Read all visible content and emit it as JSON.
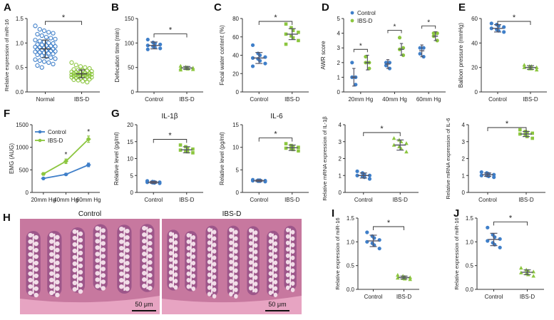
{
  "colors": {
    "control": "#3f7fc9",
    "ibsd": "#8cc63f",
    "axis": "#333333",
    "histo_bg": "#c7789f",
    "histo_cell": "#f2dde8",
    "histo_dark": "#7a3a78",
    "histo_muscle": "#e7a4c2"
  },
  "histology": {
    "panel_label": "H",
    "left_title": "Control",
    "right_title": "IBS-D",
    "scale_label": "50 μm"
  },
  "chart_data": [
    {
      "id": "A",
      "panel_label": "A",
      "type": "scatter",
      "categories": [
        "Normal",
        "IBS-D"
      ],
      "ylabel": "Relative expression of miR-16",
      "ylim": [
        0,
        1.5
      ],
      "yticks": [
        0,
        0.5,
        1.0,
        1.5
      ],
      "significance": "*",
      "markers": [
        "circle-open",
        "circle-open"
      ],
      "series": [
        {
          "name": "Normal",
          "mean": 0.88,
          "sd": 0.18,
          "values": [
            1.35,
            1.28,
            1.25,
            1.22,
            1.2,
            1.18,
            1.15,
            1.12,
            1.1,
            1.08,
            1.06,
            1.04,
            1.02,
            1.0,
            0.99,
            0.97,
            0.96,
            0.95,
            0.94,
            0.93,
            0.92,
            0.91,
            0.9,
            0.89,
            0.88,
            0.87,
            0.86,
            0.85,
            0.84,
            0.83,
            0.82,
            0.81,
            0.8,
            0.79,
            0.78,
            0.76,
            0.74,
            0.72,
            0.7,
            0.68,
            0.66,
            0.64,
            0.62,
            0.6,
            0.57,
            0.54,
            0.5
          ]
        },
        {
          "name": "IBS-D",
          "mean": 0.37,
          "sd": 0.08,
          "values": [
            0.6,
            0.55,
            0.52,
            0.5,
            0.48,
            0.46,
            0.45,
            0.44,
            0.43,
            0.42,
            0.41,
            0.4,
            0.4,
            0.39,
            0.38,
            0.38,
            0.37,
            0.37,
            0.36,
            0.36,
            0.35,
            0.35,
            0.34,
            0.34,
            0.33,
            0.33,
            0.32,
            0.32,
            0.31,
            0.3,
            0.3,
            0.29,
            0.28,
            0.27,
            0.26,
            0.25,
            0.24,
            0.22,
            0.2
          ]
        }
      ]
    },
    {
      "id": "B",
      "panel_label": "B",
      "type": "scatter",
      "categories": [
        "Control",
        "IBS-D"
      ],
      "ylabel": "Defecation time (min)",
      "ylim": [
        0,
        150
      ],
      "yticks": [
        0,
        50,
        100,
        150
      ],
      "significance": "*",
      "markers": [
        "circle",
        "triangle"
      ],
      "series": [
        {
          "name": "Control",
          "mean": 95,
          "sd": 7,
          "values": [
            107,
            101,
            99,
            97,
            95,
            93,
            91,
            89,
            87
          ]
        },
        {
          "name": "IBS-D",
          "mean": 49,
          "sd": 3,
          "values": [
            53,
            51,
            50,
            49,
            48,
            48,
            47,
            46,
            45
          ]
        }
      ]
    },
    {
      "id": "C",
      "panel_label": "C",
      "type": "scatter",
      "categories": [
        "Control",
        "IBS-D"
      ],
      "ylabel": "Fecal water content (%)",
      "ylim": [
        0,
        80
      ],
      "yticks": [
        0,
        20,
        40,
        60,
        80
      ],
      "significance": "*",
      "markers": [
        "circle",
        "square"
      ],
      "series": [
        {
          "name": "Control",
          "mean": 37,
          "sd": 6,
          "values": [
            51,
            42,
            40,
            38,
            37,
            36,
            34,
            31,
            28
          ]
        },
        {
          "name": "IBS-D",
          "mean": 63,
          "sd": 6,
          "values": [
            74,
            70,
            67,
            65,
            63,
            61,
            59,
            56,
            52
          ]
        }
      ]
    },
    {
      "id": "D",
      "panel_label": "D",
      "type": "scatter",
      "categories": [
        "20mm Hg",
        "40mm Hg",
        "60mm Hg"
      ],
      "ylabel": "AWR score",
      "ylim": [
        0,
        5
      ],
      "yticks": [
        0,
        1,
        2,
        3,
        4,
        5
      ],
      "significance": "*",
      "legend": [
        "Control",
        "IBS-D"
      ],
      "series": [
        {
          "name": "Control",
          "means": [
            1.0,
            1.9,
            2.8
          ],
          "sds": [
            0.6,
            0.3,
            0.4
          ],
          "values": [
            [
              2.0,
              1.0,
              1.0,
              0.5
            ],
            [
              2.0,
              2.0,
              1.8,
              1.6
            ],
            [
              3.0,
              3.0,
              2.6,
              2.4
            ]
          ]
        },
        {
          "name": "IBS-D",
          "means": [
            2.0,
            2.9,
            3.8
          ],
          "sds": [
            0.5,
            0.4,
            0.3
          ],
          "values": [
            [
              2.4,
              2.0,
              2.0,
              1.6
            ],
            [
              3.7,
              3.0,
              2.9,
              2.5
            ],
            [
              4.0,
              4.0,
              3.8,
              3.5
            ]
          ]
        }
      ]
    },
    {
      "id": "E",
      "panel_label": "E",
      "type": "scatter",
      "categories": [
        "Control",
        "IBS-D"
      ],
      "ylabel": "Balloon pressure (mmHg)",
      "ylim": [
        0,
        60
      ],
      "yticks": [
        0,
        20,
        40,
        60
      ],
      "significance": "*",
      "markers": [
        "circle",
        "triangle"
      ],
      "series": [
        {
          "name": "Control",
          "mean": 52,
          "sd": 3,
          "values": [
            56,
            55,
            54,
            53,
            52,
            51,
            50,
            49
          ]
        },
        {
          "name": "IBS-D",
          "mean": 20,
          "sd": 1.5,
          "values": [
            22,
            21,
            21,
            20,
            20,
            19,
            19,
            18
          ]
        }
      ]
    },
    {
      "id": "F",
      "panel_label": "F",
      "type": "line",
      "categories": [
        "20mm Hg",
        "40mm Hg",
        "60mm Hg"
      ],
      "ylabel": "EMG (AUG)",
      "ylim": [
        0,
        1500
      ],
      "yticks": [
        0,
        500,
        1000,
        1500
      ],
      "significance": "*",
      "legend": [
        "Control",
        "IBS-D"
      ],
      "series": [
        {
          "name": "Control",
          "values": [
            310,
            400,
            610
          ],
          "errors": [
            20,
            25,
            40
          ]
        },
        {
          "name": "IBS-D",
          "values": [
            410,
            690,
            1180
          ],
          "errors": [
            30,
            50,
            70
          ]
        }
      ]
    },
    {
      "id": "G1",
      "panel_label": "G",
      "type": "scatter",
      "title": "IL-1β",
      "categories": [
        "Control",
        "IBS-D"
      ],
      "ylabel": "Relative level (pg/ml)",
      "ylim": [
        0,
        20
      ],
      "yticks": [
        0,
        5,
        10,
        15,
        20
      ],
      "significance": "*",
      "markers": [
        "circle",
        "square"
      ],
      "series": [
        {
          "name": "Control",
          "mean": 3.0,
          "sd": 0.3,
          "values": [
            3.4,
            3.2,
            3.1,
            3.0,
            3.0,
            2.9,
            2.8,
            2.7
          ]
        },
        {
          "name": "IBS-D",
          "mean": 12.6,
          "sd": 0.9,
          "values": [
            14.0,
            13.5,
            13.0,
            12.8,
            12.5,
            12.3,
            12.0,
            11.7
          ]
        }
      ]
    },
    {
      "id": "G2",
      "type": "scatter",
      "title": "IL-6",
      "categories": [
        "Control",
        "IBS-D"
      ],
      "ylabel": "Relative level (pg/ml)",
      "ylim": [
        0,
        15
      ],
      "yticks": [
        0,
        5,
        10,
        15
      ],
      "significance": "*",
      "markers": [
        "circle",
        "square"
      ],
      "series": [
        {
          "name": "Control",
          "mean": 2.6,
          "sd": 0.2,
          "values": [
            2.8,
            2.7,
            2.7,
            2.6,
            2.6,
            2.5,
            2.5,
            2.4
          ]
        },
        {
          "name": "IBS-D",
          "mean": 9.9,
          "sd": 0.6,
          "values": [
            10.8,
            10.4,
            10.2,
            10.0,
            9.8,
            9.7,
            9.5,
            9.2
          ]
        }
      ]
    },
    {
      "id": "G3",
      "type": "scatter",
      "categories": [
        "Control",
        "IBS-D"
      ],
      "ylabel": "Relative mRNA expression of IL-1β",
      "ylim": [
        0,
        4
      ],
      "yticks": [
        0,
        1,
        2,
        3,
        4
      ],
      "significance": "*",
      "markers": [
        "circle",
        "triangle"
      ],
      "series": [
        {
          "name": "Control",
          "mean": 1.0,
          "sd": 0.15,
          "values": [
            1.25,
            1.15,
            1.05,
            1.0,
            1.0,
            0.95,
            0.9,
            0.8
          ]
        },
        {
          "name": "IBS-D",
          "mean": 2.8,
          "sd": 0.3,
          "values": [
            3.2,
            3.1,
            3.0,
            2.9,
            2.8,
            2.7,
            2.6,
            2.4
          ]
        }
      ]
    },
    {
      "id": "G4",
      "type": "scatter",
      "categories": [
        "Control",
        "IBS-D"
      ],
      "ylabel": "Relative mRNA expression of IL-6",
      "ylim": [
        0,
        4
      ],
      "yticks": [
        0,
        1,
        2,
        3,
        4
      ],
      "significance": "*",
      "markers": [
        "circle",
        "square"
      ],
      "series": [
        {
          "name": "Control",
          "mean": 1.05,
          "sd": 0.1,
          "values": [
            1.2,
            1.15,
            1.1,
            1.05,
            1.0,
            1.0,
            0.95,
            0.9
          ]
        },
        {
          "name": "IBS-D",
          "mean": 3.45,
          "sd": 0.15,
          "values": [
            3.7,
            3.6,
            3.55,
            3.5,
            3.45,
            3.4,
            3.3,
            3.2
          ]
        }
      ]
    },
    {
      "id": "I",
      "panel_label": "I",
      "type": "scatter",
      "categories": [
        "Control",
        "IBS-D"
      ],
      "ylabel": "Relative expression of miR-16",
      "ylim": [
        0,
        1.5
      ],
      "yticks": [
        0,
        0.5,
        1.0,
        1.5
      ],
      "significance": "*",
      "markers": [
        "circle",
        "triangle"
      ],
      "series": [
        {
          "name": "Control",
          "mean": 1.02,
          "sd": 0.12,
          "values": [
            1.2,
            1.12,
            1.08,
            1.04,
            1.0,
            0.97,
            0.93,
            0.86
          ]
        },
        {
          "name": "IBS-D",
          "mean": 0.25,
          "sd": 0.03,
          "values": [
            0.3,
            0.28,
            0.26,
            0.25,
            0.24,
            0.23,
            0.22,
            0.21
          ]
        }
      ]
    },
    {
      "id": "J",
      "panel_label": "J",
      "type": "scatter",
      "categories": [
        "Control",
        "IBS-D"
      ],
      "ylabel": "Relative expression of miR-16",
      "ylim": [
        0,
        1.5
      ],
      "yticks": [
        0,
        0.5,
        1.0,
        1.5
      ],
      "significance": "*",
      "markers": [
        "circle",
        "triangle"
      ],
      "series": [
        {
          "name": "Control",
          "mean": 1.05,
          "sd": 0.13,
          "values": [
            1.3,
            1.15,
            1.1,
            1.06,
            1.02,
            0.98,
            0.94,
            0.88
          ]
        },
        {
          "name": "IBS-D",
          "mean": 0.36,
          "sd": 0.05,
          "values": [
            0.45,
            0.41,
            0.39,
            0.37,
            0.35,
            0.33,
            0.31,
            0.28
          ]
        }
      ]
    }
  ]
}
